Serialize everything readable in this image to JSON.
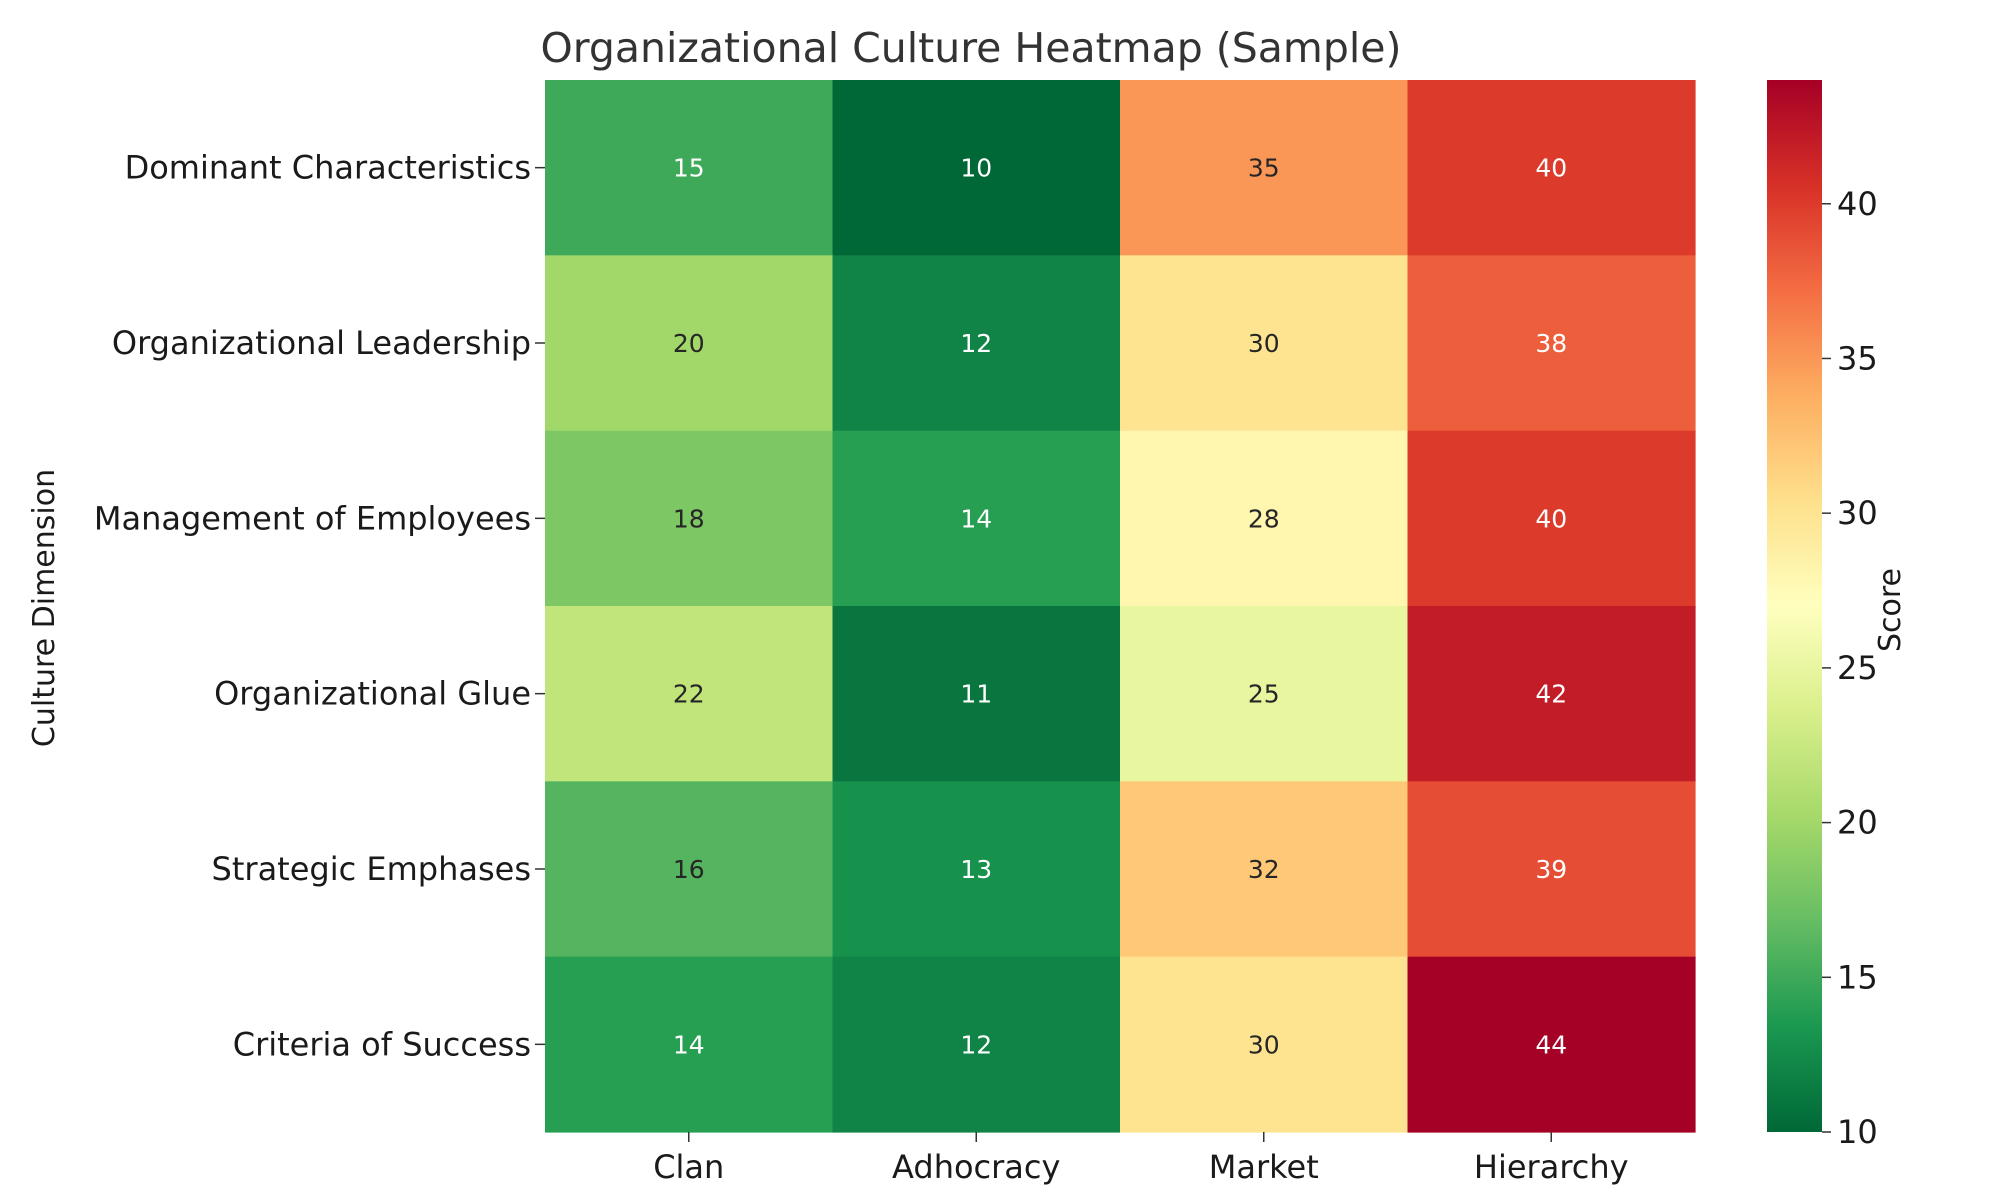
{
  "chart_data": {
    "type": "heatmap",
    "title": "Organizational Culture Heatmap (Sample)",
    "xlabel": "",
    "ylabel": "Culture Dimension",
    "colorbar_label": "Score",
    "colormap": "RdYlGn_r",
    "columns": [
      "Clan",
      "Adhocracy",
      "Market",
      "Hierarchy"
    ],
    "rows": [
      "Dominant Characteristics",
      "Organizational Leadership",
      "Management of Employees",
      "Organizational Glue",
      "Strategic Emphases",
      "Criteria of Success"
    ],
    "values": [
      [
        15,
        10,
        35,
        40
      ],
      [
        20,
        12,
        30,
        38
      ],
      [
        18,
        14,
        28,
        40
      ],
      [
        22,
        11,
        25,
        42
      ],
      [
        16,
        13,
        32,
        39
      ],
      [
        14,
        12,
        30,
        44
      ]
    ],
    "value_range": [
      10,
      44
    ],
    "colorbar_ticks": [
      10,
      15,
      20,
      25,
      30,
      35,
      40
    ]
  }
}
